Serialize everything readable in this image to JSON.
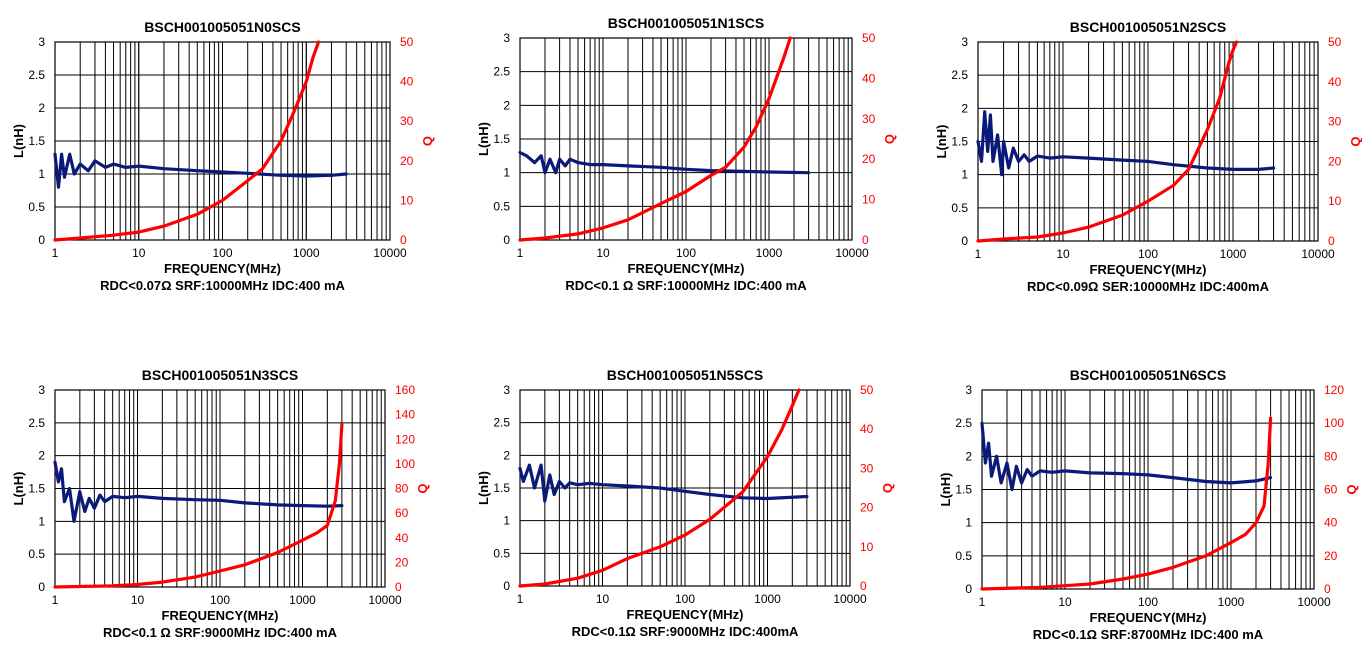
{
  "colors": {
    "inductance": "#0a1a7a",
    "q": "#ff0000",
    "grid": "#000000"
  },
  "chart_data": [
    {
      "type": "line",
      "title": "BSCH001005051N0SCS",
      "xlabel": "FREQUENCY(MHz)",
      "ylabel": "L(nH)",
      "y2label": "Q",
      "caption": "RDC<0.07Ω SRF:10000MHz IDC:400 mA",
      "x_scale": "log",
      "xlim": [
        1,
        10000
      ],
      "ylim": [
        0,
        3
      ],
      "y2lim": [
        0,
        50
      ],
      "xticks": [
        "1",
        "10",
        "100",
        "1000",
        "10000"
      ],
      "yticks": [
        "0",
        "0.5",
        "1",
        "1.5",
        "2",
        "2.5",
        "3"
      ],
      "y2ticks": [
        "0",
        "10",
        "20",
        "30",
        "40",
        "50"
      ],
      "grid": true,
      "series": [
        {
          "name": "L",
          "axis": "left",
          "color": "#0a1a7a",
          "x": [
            1,
            1.1,
            1.2,
            1.3,
            1.5,
            1.7,
            2,
            2.5,
            3,
            4,
            5,
            7,
            10,
            20,
            50,
            100,
            200,
            500,
            1000,
            2000,
            3000
          ],
          "y": [
            1.3,
            0.8,
            1.3,
            0.95,
            1.3,
            1.0,
            1.15,
            1.05,
            1.2,
            1.1,
            1.15,
            1.1,
            1.12,
            1.08,
            1.05,
            1.03,
            1.01,
            0.98,
            0.97,
            0.98,
            1.0
          ]
        },
        {
          "name": "Q",
          "axis": "right",
          "color": "#ff0000",
          "x": [
            1,
            2,
            5,
            10,
            20,
            50,
            100,
            200,
            300,
            500,
            700,
            1000,
            1200,
            1400
          ],
          "y": [
            0,
            0.5,
            1.2,
            2,
            3.5,
            6.5,
            10,
            15,
            18,
            25,
            32,
            40,
            46,
            50
          ]
        }
      ]
    },
    {
      "type": "line",
      "title": "BSCH001005051N1SCS",
      "xlabel": "FREQUENCY(MHz)",
      "ylabel": "L(nH)",
      "y2label": "Q",
      "caption": "RDC<0.1 Ω SRF:10000MHz IDC:400 mA",
      "x_scale": "log",
      "xlim": [
        1,
        10000
      ],
      "ylim": [
        0,
        3
      ],
      "y2lim": [
        0,
        50
      ],
      "xticks": [
        "1",
        "10",
        "100",
        "1000",
        "10000"
      ],
      "yticks": [
        "0",
        "0.5",
        "1",
        "1.5",
        "2",
        "2.5",
        "3"
      ],
      "y2ticks": [
        "0",
        "10",
        "20",
        "30",
        "40",
        "50"
      ],
      "grid": true,
      "series": [
        {
          "name": "L",
          "axis": "left",
          "color": "#0a1a7a",
          "x": [
            1,
            1.2,
            1.5,
            1.8,
            2,
            2.3,
            2.7,
            3,
            3.5,
            4,
            5,
            7,
            10,
            20,
            50,
            100,
            200,
            500,
            1000,
            3000
          ],
          "y": [
            1.3,
            1.25,
            1.15,
            1.25,
            1.0,
            1.2,
            1.0,
            1.2,
            1.1,
            1.2,
            1.15,
            1.12,
            1.12,
            1.1,
            1.08,
            1.05,
            1.03,
            1.02,
            1.01,
            1.0
          ]
        },
        {
          "name": "Q",
          "axis": "right",
          "color": "#ff0000",
          "x": [
            1,
            2,
            5,
            10,
            20,
            50,
            100,
            200,
            300,
            500,
            700,
            1000,
            1500,
            1800
          ],
          "y": [
            0,
            0.5,
            1.5,
            3,
            5,
            9,
            12,
            16,
            18,
            23,
            28,
            35,
            45,
            50
          ]
        }
      ]
    },
    {
      "type": "line",
      "title": "BSCH001005051N2SCS",
      "xlabel": "FREQUENCY(MHz)",
      "ylabel": "L(nH)",
      "y2label": "Q",
      "caption": "RDC<0.09Ω SER:10000MHz IDC:400mA",
      "x_scale": "log",
      "xlim": [
        1,
        10000
      ],
      "ylim": [
        0,
        3
      ],
      "y2lim": [
        0,
        50
      ],
      "xticks": [
        "1",
        "10",
        "100",
        "1000",
        "10000"
      ],
      "yticks": [
        "0",
        "0.5",
        "1",
        "1.5",
        "2",
        "2.5",
        "3"
      ],
      "y2ticks": [
        "0",
        "10",
        "20",
        "30",
        "40",
        "50"
      ],
      "grid": true,
      "series": [
        {
          "name": "L",
          "axis": "left",
          "color": "#0a1a7a",
          "x": [
            1,
            1.1,
            1.2,
            1.3,
            1.4,
            1.5,
            1.7,
            1.9,
            2,
            2.3,
            2.6,
            3,
            3.5,
            4,
            5,
            7,
            10,
            20,
            50,
            100,
            200,
            500,
            1000,
            2000,
            3000
          ],
          "y": [
            1.5,
            1.2,
            1.95,
            1.35,
            1.9,
            1.2,
            1.6,
            1.0,
            1.5,
            1.1,
            1.4,
            1.2,
            1.3,
            1.2,
            1.28,
            1.25,
            1.27,
            1.25,
            1.22,
            1.2,
            1.15,
            1.1,
            1.08,
            1.08,
            1.1
          ]
        },
        {
          "name": "Q",
          "axis": "right",
          "color": "#ff0000",
          "x": [
            1,
            2,
            5,
            10,
            20,
            50,
            100,
            200,
            300,
            500,
            700,
            900,
            1000,
            1100
          ],
          "y": [
            0,
            0.5,
            1,
            2,
            3.5,
            6.5,
            10,
            14,
            18,
            28,
            36,
            45,
            48,
            50
          ]
        }
      ]
    },
    {
      "type": "line",
      "title": "BSCH001005051N3SCS",
      "xlabel": "FREQUENCY(MHz)",
      "ylabel": "L(nH)",
      "y2label": "Q",
      "caption": "RDC<0.1 Ω SRF:9000MHz IDC:400 mA",
      "x_scale": "log",
      "xlim": [
        1,
        10000
      ],
      "ylim": [
        0,
        3
      ],
      "y2lim": [
        0,
        160
      ],
      "xticks": [
        "1",
        "10",
        "100",
        "1000",
        "10000"
      ],
      "yticks": [
        "0",
        "0.5",
        "1",
        "1.5",
        "2",
        "2.5",
        "3"
      ],
      "y2ticks": [
        "0",
        "20",
        "40",
        "60",
        "80",
        "100",
        "120",
        "140",
        "160"
      ],
      "grid": true,
      "series": [
        {
          "name": "L",
          "axis": "left",
          "color": "#0a1a7a",
          "x": [
            1,
            1.1,
            1.2,
            1.3,
            1.5,
            1.7,
            2,
            2.3,
            2.6,
            3,
            3.5,
            4,
            5,
            7,
            10,
            20,
            50,
            100,
            200,
            500,
            1000,
            2000,
            3000
          ],
          "y": [
            1.9,
            1.6,
            1.8,
            1.3,
            1.5,
            1.0,
            1.45,
            1.15,
            1.35,
            1.2,
            1.4,
            1.3,
            1.38,
            1.36,
            1.38,
            1.35,
            1.33,
            1.32,
            1.28,
            1.25,
            1.24,
            1.23,
            1.24
          ]
        },
        {
          "name": "Q",
          "axis": "right",
          "color": "#ff0000",
          "x": [
            1,
            5,
            10,
            20,
            50,
            100,
            200,
            500,
            1000,
            1500,
            2000,
            2500,
            2800,
            3000
          ],
          "y": [
            0,
            1,
            2,
            4,
            8,
            13,
            18,
            28,
            38,
            44,
            50,
            70,
            100,
            132
          ]
        }
      ]
    },
    {
      "type": "line",
      "title": "BSCH001005051N5SCS",
      "xlabel": "FREQUENCY(MHz)",
      "ylabel": "L(nH)",
      "y2label": "Q",
      "caption": "RDC<0.1Ω SRF:9000MHz IDC:400mA",
      "x_scale": "log",
      "xlim": [
        1,
        10000
      ],
      "ylim": [
        0,
        3
      ],
      "y2lim": [
        0,
        50
      ],
      "xticks": [
        "1",
        "10",
        "100",
        "1000",
        "10000"
      ],
      "yticks": [
        "0",
        "0.5",
        "1",
        "1.5",
        "2",
        "2.5",
        "3"
      ],
      "y2ticks": [
        "0",
        "10",
        "20",
        "30",
        "40",
        "50"
      ],
      "grid": true,
      "series": [
        {
          "name": "L",
          "axis": "left",
          "color": "#0a1a7a",
          "x": [
            1,
            1.1,
            1.3,
            1.5,
            1.8,
            2,
            2.3,
            2.6,
            3,
            3.5,
            4,
            5,
            7,
            10,
            20,
            50,
            100,
            200,
            500,
            1000,
            3000
          ],
          "y": [
            1.8,
            1.6,
            1.85,
            1.5,
            1.85,
            1.3,
            1.7,
            1.4,
            1.6,
            1.5,
            1.58,
            1.55,
            1.57,
            1.55,
            1.53,
            1.5,
            1.45,
            1.4,
            1.35,
            1.34,
            1.37
          ]
        },
        {
          "name": "Q",
          "axis": "right",
          "color": "#ff0000",
          "x": [
            1,
            2,
            5,
            10,
            20,
            50,
            100,
            200,
            500,
            1000,
            1500,
            2000,
            2400
          ],
          "y": [
            0,
            0.5,
            2,
            4,
            7,
            10,
            13,
            17,
            24,
            33,
            40,
            46,
            50
          ]
        }
      ]
    },
    {
      "type": "line",
      "title": "BSCH001005051N6SCS",
      "xlabel": "FREQUENCY(MHz)",
      "ylabel": "L(nH)",
      "y2label": "Q",
      "caption": "RDC<0.1Ω SRF:8700MHz IDC:400 mA",
      "x_scale": "log",
      "xlim": [
        1,
        10000
      ],
      "ylim": [
        0,
        3
      ],
      "y2lim": [
        0,
        120
      ],
      "xticks": [
        "1",
        "10",
        "100",
        "1000",
        "10000"
      ],
      "yticks": [
        "0",
        "0.5",
        "1",
        "1.5",
        "2",
        "2.5",
        "3"
      ],
      "y2ticks": [
        "0",
        "20",
        "40",
        "60",
        "80",
        "100",
        "120"
      ],
      "grid": true,
      "series": [
        {
          "name": "L",
          "axis": "left",
          "color": "#0a1a7a",
          "x": [
            1,
            1.1,
            1.2,
            1.3,
            1.5,
            1.7,
            2,
            2.3,
            2.6,
            3,
            3.5,
            4,
            5,
            7,
            10,
            20,
            50,
            100,
            200,
            500,
            1000,
            2000,
            3000
          ],
          "y": [
            2.5,
            1.9,
            2.2,
            1.7,
            2.0,
            1.6,
            1.9,
            1.5,
            1.85,
            1.6,
            1.8,
            1.7,
            1.78,
            1.76,
            1.78,
            1.75,
            1.74,
            1.72,
            1.68,
            1.62,
            1.6,
            1.63,
            1.68
          ]
        },
        {
          "name": "Q",
          "axis": "right",
          "color": "#ff0000",
          "x": [
            1,
            5,
            10,
            20,
            50,
            100,
            200,
            500,
            1000,
            1500,
            2000,
            2500,
            2800,
            3000
          ],
          "y": [
            0,
            1,
            2,
            3,
            6,
            9,
            13,
            20,
            28,
            33,
            40,
            50,
            75,
            103
          ]
        }
      ]
    }
  ]
}
